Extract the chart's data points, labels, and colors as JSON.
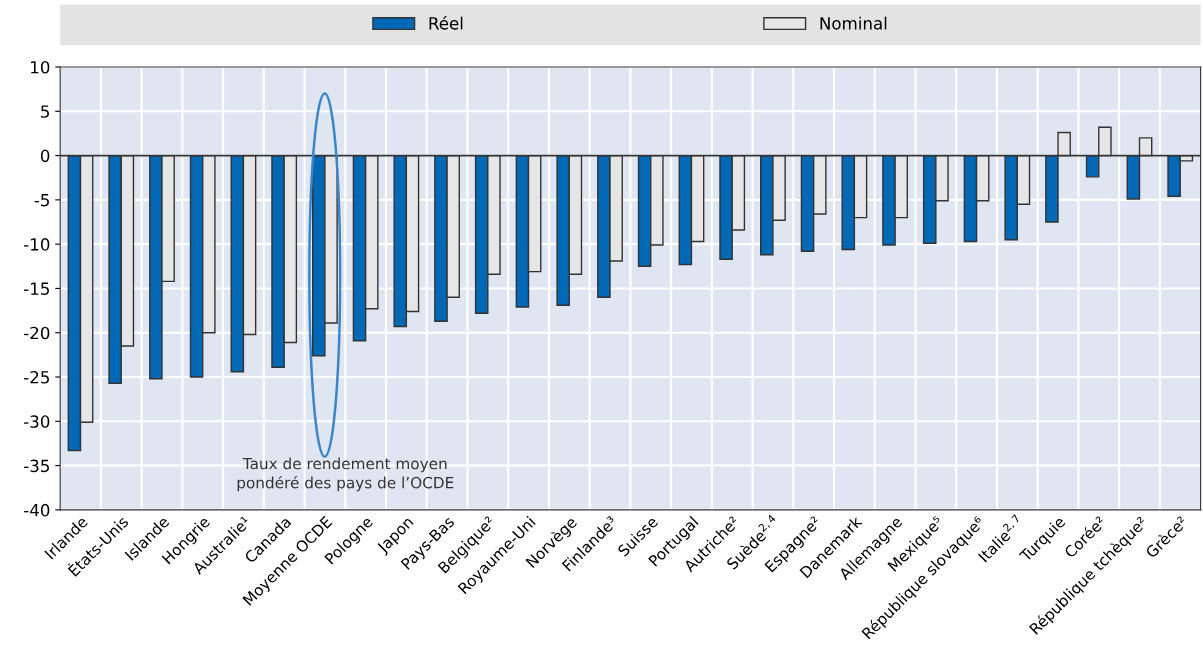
{
  "chart_data": {
    "type": "bar",
    "categories": [
      "Irlande",
      "États-Unis",
      "Islande",
      "Hongrie",
      "Australie¹",
      "Canada",
      "Moyenne OCDE",
      "Pologne",
      "Japon",
      "Pays-Bas",
      "Belgique²",
      "Royaume-Uni",
      "Norvège",
      "Finlande³",
      "Suisse",
      "Portugal",
      "Autriche²",
      "Suède$^{2,4}$",
      "Espagne²",
      "Danemark",
      "Allemagne",
      "Mexique⁵",
      "République slovaque⁶",
      "Italie$^{2,7}$",
      "Turquie",
      "Corée²",
      "République tchèque²",
      "Grèce²"
    ],
    "series": [
      {
        "name": "Réel",
        "color": "#0068b4",
        "values": [
          -33.3,
          -25.7,
          -25.2,
          -25.0,
          -24.4,
          -23.9,
          -22.6,
          -20.9,
          -19.3,
          -18.7,
          -17.8,
          -17.1,
          -16.9,
          -16.0,
          -12.5,
          -12.3,
          -11.7,
          -11.2,
          -10.8,
          -10.6,
          -10.1,
          -9.9,
          -9.7,
          -9.5,
          -7.5,
          -2.4,
          -4.9,
          -4.6
        ]
      },
      {
        "name": "Nominal",
        "color": "#e6e6e6",
        "values": [
          -30.1,
          -21.5,
          -14.2,
          -20.0,
          -20.2,
          -21.1,
          -18.9,
          -17.3,
          -17.6,
          -16.0,
          -13.4,
          -13.1,
          -13.4,
          -11.9,
          -10.1,
          -9.7,
          -8.4,
          -7.3,
          -6.6,
          -7.0,
          -7.0,
          -5.1,
          -5.1,
          -5.5,
          2.6,
          3.2,
          2.0,
          -0.6
        ]
      }
    ],
    "ylim": [
      -40,
      10
    ],
    "yticks": [
      -40,
      -35,
      -30,
      -25,
      -20,
      -15,
      -10,
      -5,
      0,
      5,
      10
    ],
    "grid": true,
    "legend": "top",
    "annotations": [
      "Taux de rendement moyen\npondéré des pays de l’OCDE"
    ]
  }
}
